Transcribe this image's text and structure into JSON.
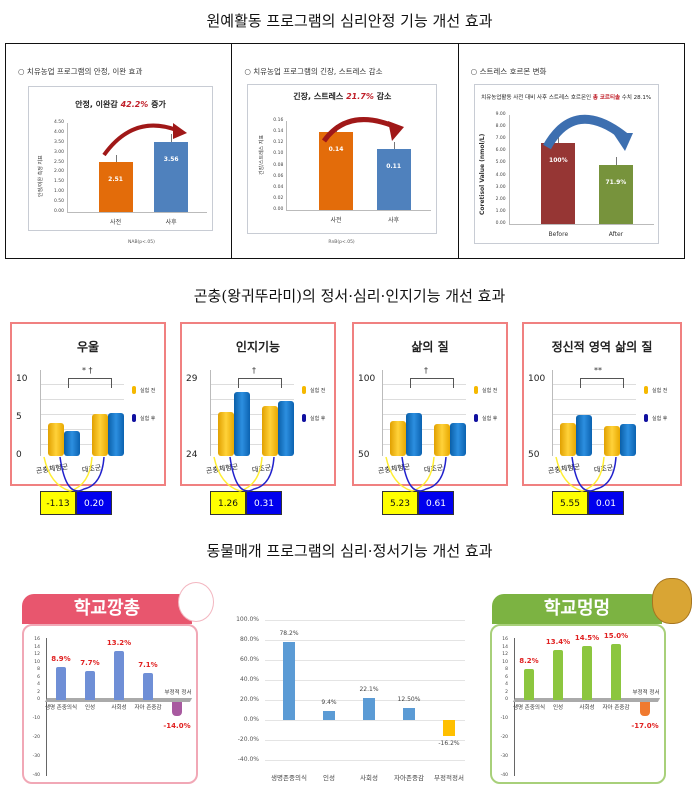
{
  "sections": {
    "s1_title": "원예활동 프로그램의 심리안정 기능 개선 효과",
    "s2_title": "곤충(왕귀뚜라미)의 정서·심리·인지기능 개선 효과",
    "s3_title": "동물매개 프로그램의 심리·정서기능 개선 효과"
  },
  "row1": {
    "c1": {
      "head": "○ 치유농업 프로그램의 안정, 이완 효과",
      "title_pre": "안정, 이완감 ",
      "title_hl": "42.2%",
      "title_post": " 증가",
      "note": "NAB(p<.05)",
      "ylabel": "안정/이완 측정 지표"
    },
    "c2": {
      "head": "○ 치유농업 프로그램의 긴장, 스트레스 감소",
      "title_pre": "긴장, 스트레스 ",
      "title_hl": "21.7%",
      "title_post": " 감소",
      "note": "RnB(p<.05)",
      "ylabel": "긴장/스트레스 지표"
    },
    "c3": {
      "head": "○ 스트레스 호르몬 변화",
      "title_pre": "치유농업활동 사전 대비 사후 스트레스 호르몬인 ",
      "title_hl": "총 코르티솔",
      "title_post": " 수치 28.1%",
      "ylabel": "Coretisol Value (nmol/L)"
    }
  },
  "row2": {
    "legend_before": "실험 전",
    "legend_after": "실험 후",
    "group1": "곤충체험군",
    "group2": "대조군"
  },
  "row3": {
    "left_banner": "학교깡총",
    "right_banner": "학교멍멍",
    "neg_label": "부정적 정서"
  },
  "chart_data": [
    {
      "type": "bar",
      "title": "안정, 이완감 42.2% 증가",
      "categories": [
        "사전",
        "사후"
      ],
      "values": [
        2.51,
        3.56
      ],
      "ylim": [
        0,
        4.5
      ],
      "yticks": [
        "0.00",
        "0.50",
        "1.00",
        "1.50",
        "2.00",
        "2.50",
        "3.00",
        "3.50",
        "4.00",
        "4.50"
      ],
      "colors": [
        "#e36c0a",
        "#4f81bd"
      ],
      "labels": [
        "2.51",
        "3.56"
      ]
    },
    {
      "type": "bar",
      "title": "긴장, 스트레스 21.7% 감소",
      "categories": [
        "사전",
        "사후"
      ],
      "values": [
        0.14,
        0.11
      ],
      "ylim": [
        0,
        0.16
      ],
      "yticks": [
        "0.00",
        "0.02",
        "0.04",
        "0.06",
        "0.08",
        "0.10",
        "0.12",
        "0.14",
        "0.16"
      ],
      "colors": [
        "#e36c0a",
        "#4f81bd"
      ],
      "labels": [
        "0.14",
        "0.11"
      ]
    },
    {
      "type": "bar",
      "title": "치유농업활동 사전 대비 사후 스트레스 호르몬인 총 코르티솔 수치 28.1%",
      "categories": [
        "Before",
        "After"
      ],
      "values": [
        6.7,
        4.85
      ],
      "ylim": [
        0,
        9
      ],
      "yticks": [
        "0.00",
        "1.00",
        "2.00",
        "3.00",
        "4.00",
        "5.00",
        "6.00",
        "7.00",
        "8.00",
        "9.00"
      ],
      "colors": [
        "#963634",
        "#77933c"
      ],
      "labels": [
        "100%",
        "71.9%"
      ],
      "ylabel": "Coretisol Value (nmol/L)"
    },
    {
      "type": "bar",
      "title": "우울",
      "categories": [
        "곤충체험군",
        "대조군"
      ],
      "series": [
        {
          "name": "실험 전",
          "values": [
            4.4,
            5.5
          ]
        },
        {
          "name": "실험 후",
          "values": [
            3.3,
            5.7
          ]
        }
      ],
      "ylim": [
        0,
        10
      ],
      "yticks": [
        "0",
        "5",
        "10"
      ],
      "significance": "* †",
      "differences": [
        "-1.13",
        "0.20"
      ]
    },
    {
      "type": "bar",
      "title": "인지기능",
      "categories": [
        "곤충체험군",
        "대조군"
      ],
      "series": [
        {
          "name": "실험 전",
          "values": [
            26.9,
            27.3
          ]
        },
        {
          "name": "실험 후",
          "values": [
            28.2,
            27.6
          ]
        }
      ],
      "ylim": [
        24,
        29
      ],
      "yticks": [
        "24",
        "29"
      ],
      "significance": "†",
      "differences": [
        "1.26",
        "0.31"
      ]
    },
    {
      "type": "bar",
      "title": "삶의 질",
      "categories": [
        "곤충체험군",
        "대조군"
      ],
      "series": [
        {
          "name": "실험 전",
          "values": [
            73,
            71
          ]
        },
        {
          "name": "실험 후",
          "values": [
            78,
            72
          ]
        }
      ],
      "ylim": [
        50,
        100
      ],
      "yticks": [
        "50",
        "100"
      ],
      "significance": "†",
      "differences": [
        "5.23",
        "0.61"
      ]
    },
    {
      "type": "bar",
      "title": "정신적 영역 삶의 질",
      "categories": [
        "곤충체험군",
        "대조군"
      ],
      "series": [
        {
          "name": "실험 전",
          "values": [
            72,
            70
          ]
        },
        {
          "name": "실험 후",
          "values": [
            77,
            71
          ]
        }
      ],
      "ylim": [
        50,
        100
      ],
      "yticks": [
        "50",
        "100"
      ],
      "significance": "**",
      "differences": [
        "5.55",
        "0.01"
      ]
    },
    {
      "type": "bar",
      "title": "학교깡총",
      "categories": [
        "생명 존중의식",
        "인성",
        "사회성",
        "자아 존중감",
        "부정적 정서"
      ],
      "values": [
        8.9,
        7.7,
        13.2,
        7.1,
        -14.0
      ],
      "labels": [
        "8.9%",
        "7.7%",
        "13.2%",
        "7.1%",
        "-14.0%"
      ],
      "ylim": [
        -40,
        16
      ],
      "yticks": [
        "16",
        "14",
        "12",
        "10",
        "8",
        "6",
        "4",
        "2",
        "0",
        "-10",
        "-20",
        "-30",
        "-40"
      ]
    },
    {
      "type": "bar",
      "title": "",
      "categories": [
        "생명존중의식",
        "인성",
        "사회성",
        "자아존중감",
        "부정적정서"
      ],
      "values": [
        78.2,
        9.4,
        22.1,
        12.5,
        -16.2
      ],
      "labels": [
        "78.2%",
        "9.4%",
        "22.1%",
        "12.50%",
        "-16.2%"
      ],
      "ylim": [
        -40,
        100
      ],
      "yticks": [
        "100.0%",
        "80.0%",
        "60.0%",
        "40.0%",
        "20.0%",
        "0.0%",
        "-20.0%",
        "-40.0%"
      ]
    },
    {
      "type": "bar",
      "title": "학교멍멍",
      "categories": [
        "생명 존중의식",
        "인성",
        "사회성",
        "자아 존중감",
        "부정적 정서"
      ],
      "values": [
        8.2,
        13.4,
        14.5,
        15.0,
        -17.0
      ],
      "labels": [
        "8.2%",
        "13.4%",
        "14.5%",
        "15.0%",
        "-17.0%"
      ],
      "ylim": [
        -40,
        16
      ],
      "yticks": [
        "16",
        "14",
        "12",
        "10",
        "8",
        "6",
        "4",
        "2",
        "0",
        "-10",
        "-20",
        "-30",
        "-40"
      ]
    }
  ]
}
